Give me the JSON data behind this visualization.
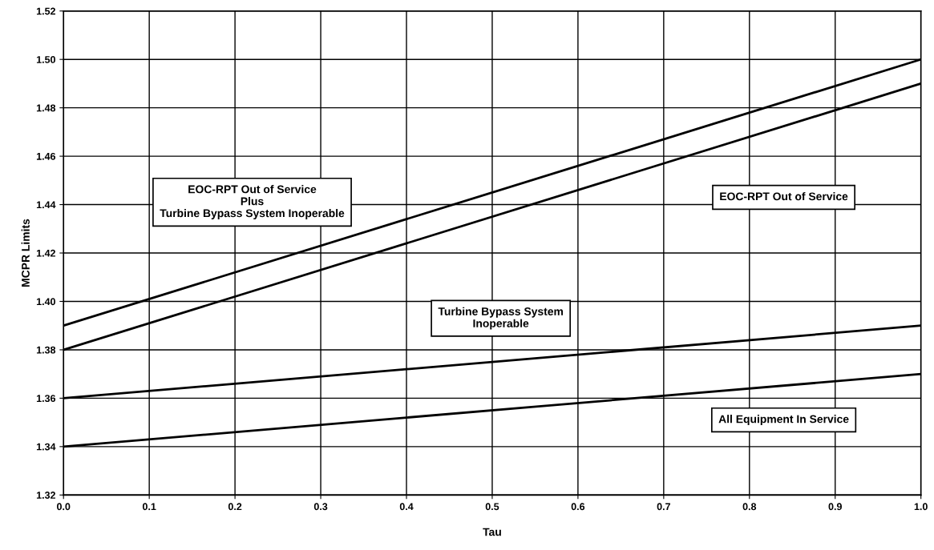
{
  "chart_data": {
    "type": "line",
    "xlabel": "Tau",
    "ylabel": "MCPR Limits",
    "x": [
      0.0,
      1.0
    ],
    "series": [
      {
        "name": "EOC-RPT Out of Service\nPlus\nTurbine Bypass System Inoperable",
        "color": "#000000",
        "values": [
          1.39,
          1.5
        ]
      },
      {
        "name": "EOC-RPT Out of Service",
        "color": "#000000",
        "values": [
          1.38,
          1.49
        ]
      },
      {
        "name": "Turbine Bypass System\nInoperable",
        "color": "#000000",
        "values": [
          1.36,
          1.39
        ]
      },
      {
        "name": "All Equipment In Service",
        "color": "#000000",
        "values": [
          1.34,
          1.37
        ]
      }
    ],
    "xlim": [
      0.0,
      1.0
    ],
    "xticks": [
      {
        "value": 0,
        "label": "0.0"
      },
      0.1,
      0.2,
      0.3,
      0.4,
      0.5,
      0.6,
      0.7,
      0.8,
      0.9,
      {
        "value": 1,
        "label": "1.0"
      }
    ],
    "ylim": [
      1.32,
      1.52
    ],
    "yticks": [
      1.32,
      1.34,
      1.36,
      1.38,
      {
        "value": 1.4,
        "label": "1.40"
      },
      1.42,
      1.44,
      1.46,
      1.48,
      {
        "value": 1.5,
        "label": "1.50"
      },
      1.52
    ],
    "grid": true,
    "marker": "none",
    "line_style": "solid"
  }
}
